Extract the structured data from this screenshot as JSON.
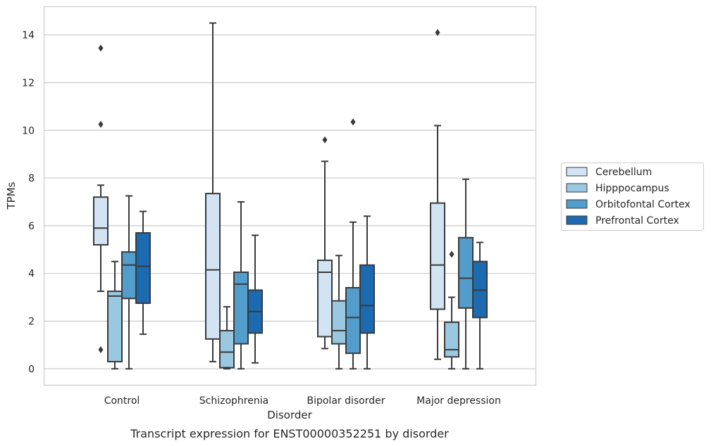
{
  "caption": "Transcript expression for ENST00000352251 by disorder",
  "chart_data": {
    "type": "box",
    "xlabel": "Disorder",
    "ylabel": "TPMs",
    "ylim": [
      -0.7,
      15.2
    ],
    "yticks": [
      0,
      2,
      4,
      6,
      8,
      10,
      12,
      14
    ],
    "grid": true,
    "legend_placement": "right",
    "categories": [
      "Control",
      "Schizophrenia",
      "Bipolar disorder",
      "Major depression"
    ],
    "series": [
      {
        "name": "Cerebellum",
        "color": "#d2e3f3",
        "boxes": [
          {
            "category": "Control",
            "whisker_low": 3.25,
            "q1": 5.2,
            "median": 5.9,
            "q3": 7.2,
            "whisker_high": 7.7,
            "outliers": [
              13.45,
              10.25,
              0.8
            ]
          },
          {
            "category": "Schizophrenia",
            "whisker_low": 0.3,
            "q1": 1.25,
            "median": 4.15,
            "q3": 7.35,
            "whisker_high": 14.5,
            "outliers": []
          },
          {
            "category": "Bipolar disorder",
            "whisker_low": 0.85,
            "q1": 1.35,
            "median": 4.05,
            "q3": 4.55,
            "whisker_high": 8.7,
            "outliers": [
              9.6
            ]
          },
          {
            "category": "Major depression",
            "whisker_low": 0.4,
            "q1": 2.5,
            "median": 4.35,
            "q3": 6.95,
            "whisker_high": 10.2,
            "outliers": [
              14.1
            ]
          }
        ]
      },
      {
        "name": "Hipppocampus",
        "color": "#9ac8e0",
        "boxes": [
          {
            "category": "Control",
            "whisker_low": 0.0,
            "q1": 0.3,
            "median": 3.05,
            "q3": 3.25,
            "whisker_high": 4.5,
            "outliers": []
          },
          {
            "category": "Schizophrenia",
            "whisker_low": 0.0,
            "q1": 0.05,
            "median": 0.7,
            "q3": 1.6,
            "whisker_high": 2.6,
            "outliers": []
          },
          {
            "category": "Bipolar disorder",
            "whisker_low": 0.0,
            "q1": 1.05,
            "median": 1.6,
            "q3": 2.85,
            "whisker_high": 4.75,
            "outliers": []
          },
          {
            "category": "Major depression",
            "whisker_low": 0.0,
            "q1": 0.5,
            "median": 0.8,
            "q3": 1.95,
            "whisker_high": 3.0,
            "outliers": [
              4.8
            ]
          }
        ]
      },
      {
        "name": "Orbitofontal Cortex",
        "color": "#529dcc",
        "boxes": [
          {
            "category": "Control",
            "whisker_low": 0.0,
            "q1": 2.95,
            "median": 4.35,
            "q3": 4.9,
            "whisker_high": 7.25,
            "outliers": []
          },
          {
            "category": "Schizophrenia",
            "whisker_low": 0.0,
            "q1": 1.05,
            "median": 3.55,
            "q3": 4.05,
            "whisker_high": 7.0,
            "outliers": []
          },
          {
            "category": "Bipolar disorder",
            "whisker_low": 0.0,
            "q1": 0.65,
            "median": 2.15,
            "q3": 3.4,
            "whisker_high": 6.15,
            "outliers": [
              10.35
            ]
          },
          {
            "category": "Major depression",
            "whisker_low": 0.0,
            "q1": 2.55,
            "median": 3.8,
            "q3": 5.5,
            "whisker_high": 7.95,
            "outliers": []
          }
        ]
      },
      {
        "name": "Prefrontal Cortex",
        "color": "#1c6aaf",
        "boxes": [
          {
            "category": "Control",
            "whisker_low": 1.45,
            "q1": 2.75,
            "median": 4.3,
            "q3": 5.7,
            "whisker_high": 6.6,
            "outliers": []
          },
          {
            "category": "Schizophrenia",
            "whisker_low": 0.25,
            "q1": 1.5,
            "median": 2.4,
            "q3": 3.3,
            "whisker_high": 5.6,
            "outliers": []
          },
          {
            "category": "Bipolar disorder",
            "whisker_low": 0.0,
            "q1": 1.5,
            "median": 2.65,
            "q3": 4.35,
            "whisker_high": 6.4,
            "outliers": []
          },
          {
            "category": "Major depression",
            "whisker_low": 0.0,
            "q1": 2.15,
            "median": 3.3,
            "q3": 4.5,
            "whisker_high": 5.3,
            "outliers": []
          }
        ]
      }
    ]
  }
}
